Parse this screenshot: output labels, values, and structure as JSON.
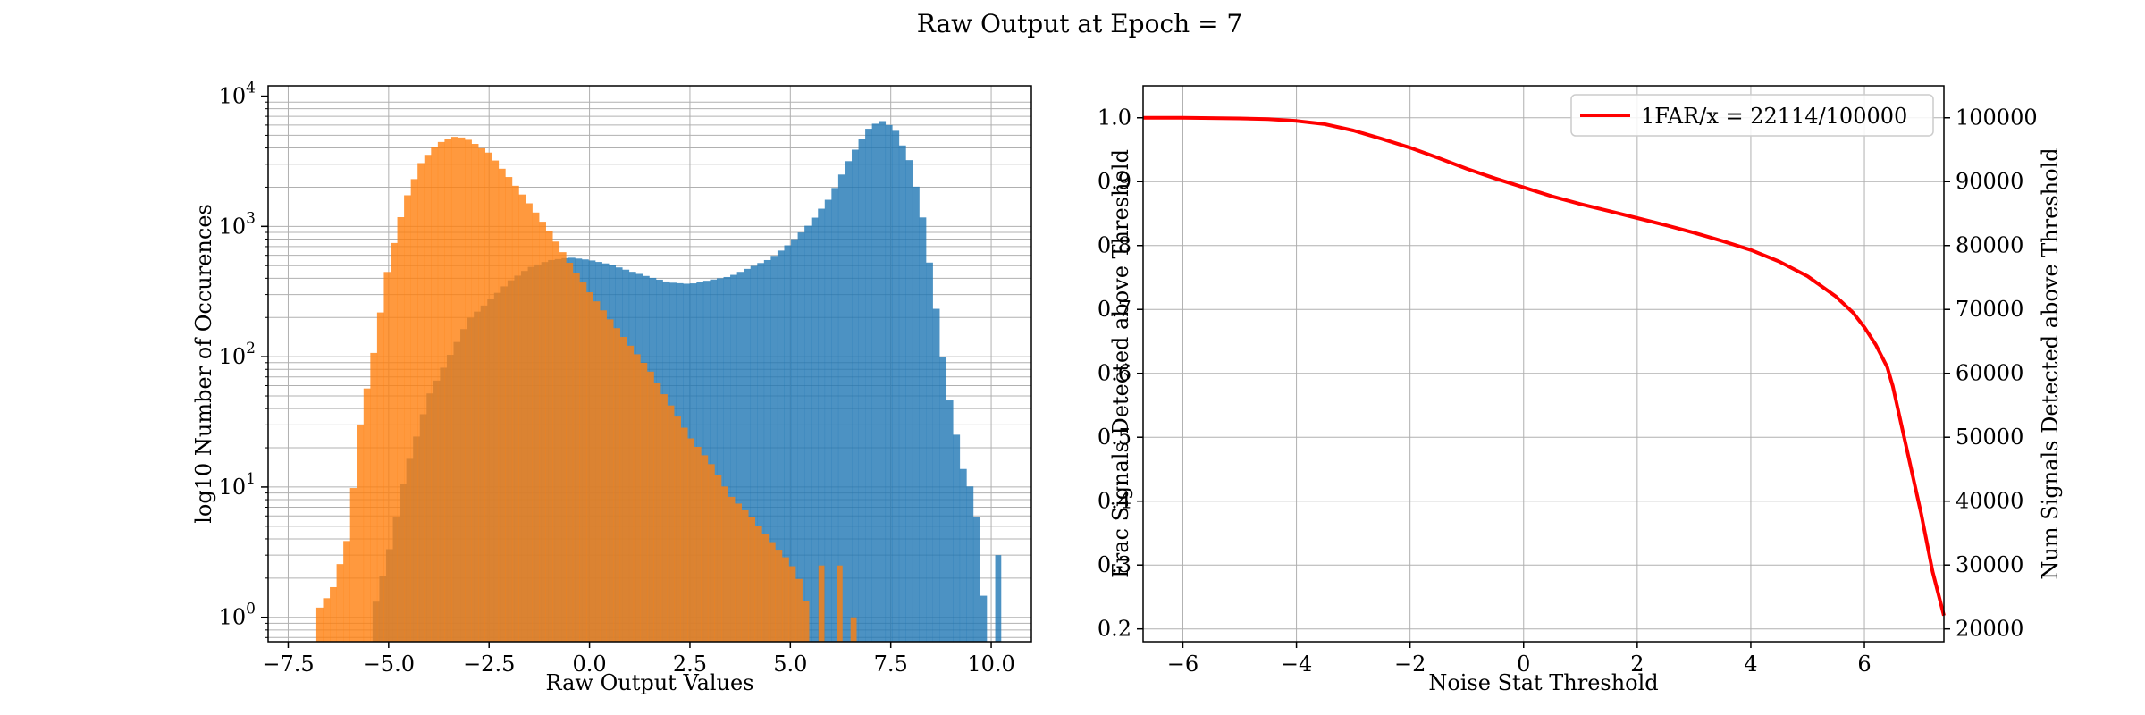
{
  "figure": {
    "title": "Raw Output at Epoch = 7"
  },
  "chart_data": [
    {
      "type": "histogram",
      "xlabel": "Raw Output Values",
      "ylabel": "log10 Number of Occurences",
      "xlim": [
        -8.0,
        11.0
      ],
      "ylim": [
        0.65,
        12000
      ],
      "yscale": "log",
      "grid": true,
      "xticks": [
        "−7.5",
        "−5.0",
        "−2.5",
        "0.0",
        "2.5",
        "5.0",
        "7.5",
        "10.0"
      ],
      "yticks": [
        "10^0",
        "10^1",
        "10^2",
        "10^3",
        "10^4"
      ],
      "series": [
        {
          "color": "#1f77b4",
          "alpha": 0.8,
          "profile": [
            [
              -5.4,
              1
            ],
            [
              -5.0,
              3
            ],
            [
              -4.6,
              12
            ],
            [
              -4.0,
              50
            ],
            [
              -3.5,
              100
            ],
            [
              -3.0,
              200
            ],
            [
              -2.5,
              280
            ],
            [
              -2.0,
              400
            ],
            [
              -1.5,
              520
            ],
            [
              -1.0,
              600
            ],
            [
              -0.5,
              640
            ],
            [
              0.0,
              620
            ],
            [
              0.5,
              580
            ],
            [
              1.0,
              520
            ],
            [
              1.5,
              470
            ],
            [
              2.0,
              430
            ],
            [
              2.5,
              420
            ],
            [
              3.0,
              450
            ],
            [
              3.5,
              480
            ],
            [
              4.0,
              560
            ],
            [
              4.5,
              650
            ],
            [
              5.0,
              850
            ],
            [
              5.5,
              1200
            ],
            [
              6.0,
              1900
            ],
            [
              6.5,
              3800
            ],
            [
              7.0,
              6500
            ],
            [
              7.3,
              7000
            ],
            [
              7.6,
              6000
            ],
            [
              8.0,
              3200
            ],
            [
              8.3,
              1200
            ],
            [
              8.6,
              280
            ],
            [
              8.9,
              60
            ],
            [
              9.3,
              14
            ],
            [
              9.6,
              8
            ],
            [
              9.85,
              1
            ]
          ],
          "extra_bins": [
            [
              10.1,
              10.25,
              3.0
            ]
          ]
        },
        {
          "color": "#ff7f0e",
          "alpha": 0.8,
          "profile": [
            [
              -6.8,
              1
            ],
            [
              -6.4,
              1.5
            ],
            [
              -6.0,
              4
            ],
            [
              -5.7,
              30
            ],
            [
              -5.4,
              90
            ],
            [
              -5.0,
              500
            ],
            [
              -4.6,
              1500
            ],
            [
              -4.2,
              3000
            ],
            [
              -3.8,
              4300
            ],
            [
              -3.3,
              5000
            ],
            [
              -3.0,
              4700
            ],
            [
              -2.5,
              3800
            ],
            [
              -2.0,
              2500
            ],
            [
              -1.5,
              1600
            ],
            [
              -1.0,
              1000
            ],
            [
              -0.5,
              580
            ],
            [
              0.0,
              350
            ],
            [
              0.5,
              220
            ],
            [
              1.0,
              140
            ],
            [
              1.5,
              90
            ],
            [
              2.0,
              50
            ],
            [
              2.5,
              28
            ],
            [
              3.0,
              18
            ],
            [
              3.5,
              10
            ],
            [
              4.0,
              7
            ],
            [
              4.5,
              4.5
            ],
            [
              5.0,
              3
            ],
            [
              5.3,
              2
            ],
            [
              5.5,
              1
            ]
          ],
          "extra_bins": [
            [
              5.7,
              5.85,
              2.5
            ],
            [
              6.15,
              6.3,
              2.5
            ],
            [
              6.5,
              6.65,
              1.0
            ]
          ]
        }
      ]
    },
    {
      "type": "line",
      "xlabel": "Noise Stat Threshold",
      "ylabel": "Frac Signals Detected above Threshold",
      "ylabel_right": "Num Signals Detected above Threshold",
      "xlim": [
        -6.7,
        7.4
      ],
      "ylim": [
        0.18,
        1.05
      ],
      "xticks": [
        "−6",
        "−4",
        "−2",
        "0",
        "2",
        "4",
        "6"
      ],
      "yticks": [
        "0.2",
        "0.3",
        "0.4",
        "0.5",
        "0.6",
        "0.7",
        "0.8",
        "0.9",
        "1.0"
      ],
      "yticks_right": [
        "20000",
        "30000",
        "40000",
        "50000",
        "60000",
        "70000",
        "80000",
        "90000",
        "100000"
      ],
      "grid": true,
      "legend_position": "upper-right",
      "series": [
        {
          "name": "1FAR/x = 22114/100000",
          "color": "#ff0000",
          "x": [
            -6.7,
            -6.0,
            -5.0,
            -4.5,
            -4.0,
            -3.5,
            -3.0,
            -2.5,
            -2.0,
            -1.5,
            -1.0,
            -0.5,
            0.0,
            0.5,
            1.0,
            1.5,
            2.0,
            2.5,
            3.0,
            3.5,
            4.0,
            4.5,
            5.0,
            5.5,
            5.8,
            6.0,
            6.2,
            6.4,
            6.5,
            6.7,
            7.0,
            7.2,
            7.4
          ],
          "y": [
            1.0,
            1.0,
            0.999,
            0.998,
            0.995,
            0.99,
            0.98,
            0.967,
            0.953,
            0.937,
            0.92,
            0.905,
            0.891,
            0.877,
            0.865,
            0.854,
            0.843,
            0.832,
            0.82,
            0.807,
            0.793,
            0.775,
            0.752,
            0.72,
            0.695,
            0.672,
            0.645,
            0.61,
            0.58,
            0.5,
            0.38,
            0.29,
            0.221
          ]
        }
      ]
    }
  ]
}
